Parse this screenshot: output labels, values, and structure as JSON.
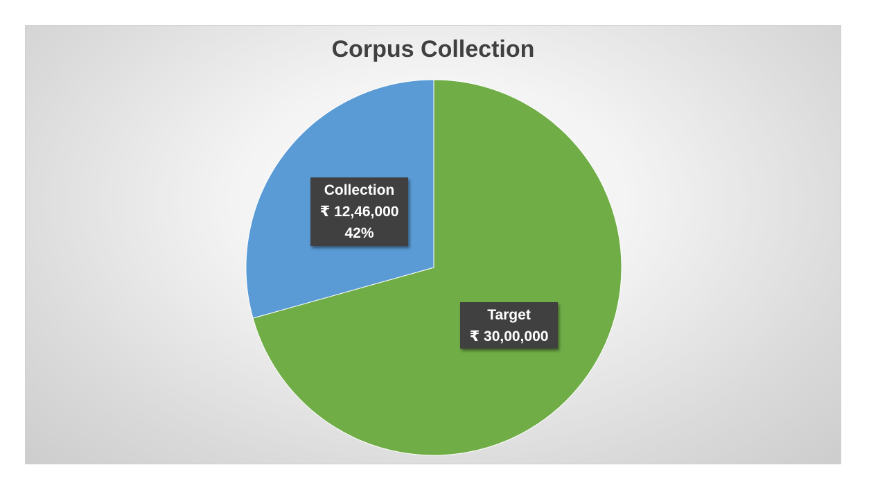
{
  "chart_data": {
    "type": "pie",
    "title": "Corpus Collection",
    "slices": [
      {
        "name": "Collection",
        "value": 1246000,
        "value_label": "₹ 12,46,000",
        "percent_label": "42%",
        "color": "#5b9bd5"
      },
      {
        "name": "Target",
        "value": 3000000,
        "value_label": "₹ 30,00,000",
        "color": "#70ad47"
      }
    ],
    "start_angle_deg": 0,
    "direction": "counterclockwise-collection-from-top",
    "legend": "none"
  }
}
